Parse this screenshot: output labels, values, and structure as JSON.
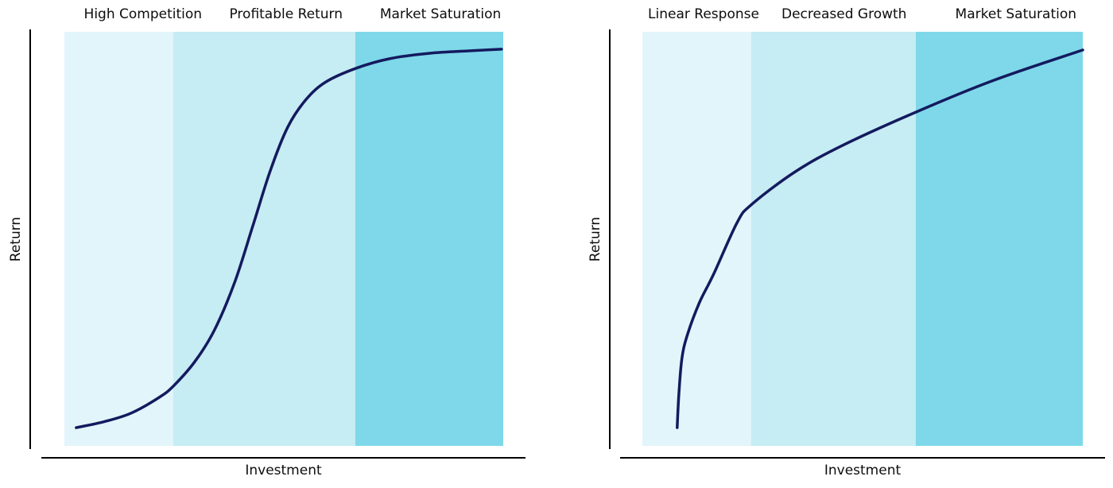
{
  "chart_data": [
    {
      "type": "line",
      "title": "",
      "xlabel": "Investment",
      "ylabel": "Return",
      "grid": false,
      "legend": "none",
      "axis_ticks": "none (qualitative axes)",
      "zones": [
        {
          "label": "High Competition",
          "color": "#e2f5fa",
          "x0": 0.0,
          "x1": 0.248,
          "label_x": 0.179
        },
        {
          "label": "Profitable Return",
          "color": "#c6ecf4",
          "x0": 0.248,
          "x1": 0.663,
          "label_x": 0.505
        },
        {
          "label": "Market Saturation",
          "color": "#7ed8e9",
          "x0": 0.663,
          "x1": 1.0,
          "label_x": 0.857
        }
      ],
      "curve": {
        "color": "#141a5e",
        "shape": "s-curve",
        "points": [
          [
            0.027,
            0.044
          ],
          [
            0.089,
            0.058
          ],
          [
            0.152,
            0.079
          ],
          [
            0.216,
            0.117
          ],
          [
            0.248,
            0.144
          ],
          [
            0.297,
            0.203
          ],
          [
            0.342,
            0.28
          ],
          [
            0.388,
            0.395
          ],
          [
            0.429,
            0.53
          ],
          [
            0.469,
            0.664
          ],
          [
            0.509,
            0.77
          ],
          [
            0.551,
            0.837
          ],
          [
            0.596,
            0.879
          ],
          [
            0.665,
            0.912
          ],
          [
            0.741,
            0.935
          ],
          [
            0.831,
            0.948
          ],
          [
            0.922,
            0.954
          ],
          [
            0.996,
            0.958
          ]
        ]
      }
    },
    {
      "type": "line",
      "title": "",
      "xlabel": "Investment",
      "ylabel": "Return",
      "grid": false,
      "legend": "none",
      "axis_ticks": "none (qualitative axes)",
      "zones": [
        {
          "label": "Linear Response",
          "color": "#e2f5fa",
          "x0": 0.0,
          "x1": 0.247,
          "label_x": 0.139
        },
        {
          "label": "Decreased Growth",
          "color": "#c6ecf4",
          "x0": 0.247,
          "x1": 0.621,
          "label_x": 0.458
        },
        {
          "label": "Market Saturation",
          "color": "#7ed8e9",
          "x0": 0.621,
          "x1": 1.0,
          "label_x": 0.848
        }
      ],
      "curve": {
        "color": "#141a5e",
        "shape": "diminishing-returns",
        "points": [
          [
            0.079,
            0.044
          ],
          [
            0.083,
            0.127
          ],
          [
            0.09,
            0.213
          ],
          [
            0.103,
            0.271
          ],
          [
            0.13,
            0.347
          ],
          [
            0.162,
            0.415
          ],
          [
            0.215,
            0.539
          ],
          [
            0.247,
            0.582
          ],
          [
            0.347,
            0.662
          ],
          [
            0.455,
            0.726
          ],
          [
            0.621,
            0.806
          ],
          [
            0.798,
            0.883
          ],
          [
            1.0,
            0.956
          ]
        ]
      }
    }
  ],
  "colors": {
    "axis": "#000000",
    "label_text": "#0d0d0d",
    "background": "#ffffff"
  }
}
